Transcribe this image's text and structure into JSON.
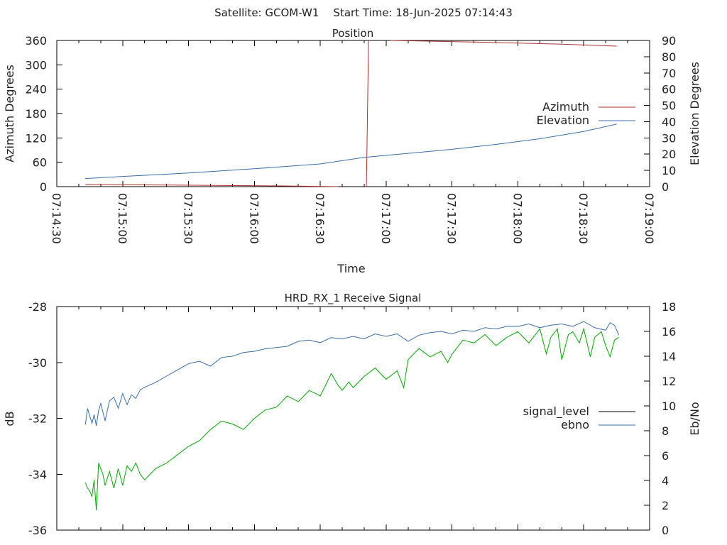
{
  "header": {
    "satellite_label": "Satellite: GCOM-W1",
    "start_time_label": "Start Time: 18-Jun-2025 07:14:43"
  },
  "colors": {
    "azimuth": "#b03030",
    "elevation": "#3a6ea8",
    "signal_level": "#000000",
    "ebno": "#3a6ea8",
    "green_trace": "#00aa00"
  },
  "chart_data": [
    {
      "type": "line",
      "title": "Position",
      "xlabel": "Time",
      "ylabel": "Azimuth Degrees",
      "y2label": "Elevation Degrees",
      "xlim_seconds": [
        0,
        270
      ],
      "x_tick_labels": [
        "07:14:30",
        "07:15:00",
        "07:15:30",
        "07:16:00",
        "07:16:30",
        "07:17:00",
        "07:17:30",
        "07:18:00",
        "07:18:30",
        "07:19:00"
      ],
      "ylim": [
        0,
        360
      ],
      "y_ticks": [
        "0",
        "60",
        "120",
        "180",
        "240",
        "300",
        "360"
      ],
      "y2lim": [
        0,
        90
      ],
      "y2_ticks": [
        "0",
        "10",
        "20",
        "30",
        "40",
        "50",
        "60",
        "70",
        "80",
        "90"
      ],
      "legend_position": "right",
      "grid": false,
      "series": [
        {
          "name": "Azimuth",
          "axis": "left",
          "segments": [
            {
              "x": [
                13,
                50,
                100,
                128
              ],
              "y": [
                5,
                4,
                2,
                0
              ]
            },
            {
              "x": [
                141,
                142
              ],
              "y": [
                0,
                360
              ]
            },
            {
              "x": [
                152,
                190,
                230,
                255
              ],
              "y": [
                360,
                356,
                351,
                346
              ]
            }
          ]
        },
        {
          "name": "Elevation",
          "axis": "right",
          "x": [
            13,
            30,
            60,
            90,
            120,
            140,
            160,
            180,
            200,
            220,
            240,
            255
          ],
          "y": [
            5,
            6.3,
            8.4,
            11,
            14,
            18,
            20.5,
            23,
            26,
            29.5,
            34,
            38.5
          ]
        }
      ]
    },
    {
      "type": "line",
      "title": "HRD_RX_1 Receive Signal",
      "ylabel": "dB",
      "y2label": "Eb/No",
      "xlim_seconds": [
        0,
        270
      ],
      "ylim": [
        -36,
        -28
      ],
      "y_ticks": [
        "-36",
        "-34",
        "-32",
        "-30",
        "-28"
      ],
      "y2lim": [
        0,
        18
      ],
      "y2_ticks": [
        "0",
        "2",
        "4",
        "6",
        "8",
        "10",
        "12",
        "14",
        "16",
        "18"
      ],
      "legend_position": "right",
      "series": [
        {
          "name": "signal_level",
          "axis": "left",
          "x": [],
          "y": []
        },
        {
          "name": "ebno",
          "axis": "right",
          "x": [
            13,
            14,
            15,
            16,
            17,
            18,
            19,
            20,
            22,
            24,
            26,
            28,
            30,
            32,
            34,
            36,
            38,
            40,
            45,
            50,
            55,
            60,
            65,
            70,
            75,
            80,
            85,
            90,
            95,
            100,
            105,
            110,
            115,
            120,
            125,
            130,
            135,
            140,
            145,
            150,
            155,
            160,
            165,
            170,
            175,
            180,
            185,
            190,
            195,
            200,
            205,
            210,
            215,
            220,
            225,
            230,
            235,
            240,
            245,
            250,
            252,
            254,
            256
          ],
          "y": [
            8.5,
            9.8,
            9.2,
            8.6,
            9.3,
            8.4,
            9.6,
            10.2,
            8.8,
            10.4,
            10.7,
            9.8,
            11.0,
            10.1,
            10.9,
            10.6,
            11.3,
            11.5,
            11.9,
            12.4,
            12.9,
            13.4,
            13.6,
            13.2,
            13.9,
            14.0,
            14.3,
            14.4,
            14.6,
            14.7,
            14.8,
            15.2,
            15.3,
            15.1,
            15.5,
            15.4,
            15.6,
            15.4,
            15.8,
            15.6,
            15.8,
            15.2,
            15.7,
            15.9,
            16.0,
            15.8,
            16.1,
            16.0,
            16.3,
            16.2,
            16.4,
            16.4,
            16.6,
            16.3,
            16.5,
            16.6,
            16.4,
            16.8,
            16.3,
            16.1,
            16.7,
            16.5,
            15.7
          ]
        },
        {
          "name": "",
          "axis": "left",
          "x": [
            13,
            14,
            15,
            16,
            17,
            18,
            19,
            20,
            21,
            22,
            24,
            26,
            28,
            30,
            32,
            34,
            36,
            38,
            40,
            45,
            50,
            55,
            60,
            65,
            70,
            75,
            80,
            85,
            90,
            95,
            100,
            105,
            110,
            115,
            120,
            125,
            128,
            130,
            133,
            135,
            140,
            145,
            150,
            155,
            158,
            160,
            165,
            170,
            175,
            178,
            180,
            185,
            190,
            195,
            200,
            205,
            210,
            215,
            220,
            223,
            225,
            228,
            230,
            233,
            235,
            238,
            240,
            243,
            245,
            248,
            250,
            252,
            254,
            256
          ],
          "y": [
            -34.3,
            -34.5,
            -34.6,
            -34.8,
            -34.2,
            -35.3,
            -33.6,
            -33.8,
            -34.0,
            -34.4,
            -33.9,
            -34.5,
            -33.8,
            -34.4,
            -33.7,
            -33.9,
            -33.6,
            -34.0,
            -34.2,
            -33.8,
            -33.6,
            -33.3,
            -33.0,
            -32.8,
            -32.4,
            -32.1,
            -32.2,
            -32.4,
            -32.0,
            -31.7,
            -31.6,
            -31.2,
            -31.4,
            -31.0,
            -31.2,
            -30.4,
            -30.8,
            -31.0,
            -30.7,
            -30.9,
            -30.5,
            -30.2,
            -30.6,
            -30.3,
            -30.9,
            -29.9,
            -29.5,
            -29.8,
            -29.6,
            -30.0,
            -29.7,
            -29.2,
            -29.3,
            -29.0,
            -29.4,
            -29.1,
            -28.9,
            -29.3,
            -28.8,
            -29.7,
            -29.1,
            -28.8,
            -29.9,
            -29.0,
            -28.9,
            -29.3,
            -28.8,
            -29.8,
            -29.1,
            -28.9,
            -29.4,
            -29.8,
            -29.2,
            -29.1
          ]
        }
      ]
    }
  ]
}
